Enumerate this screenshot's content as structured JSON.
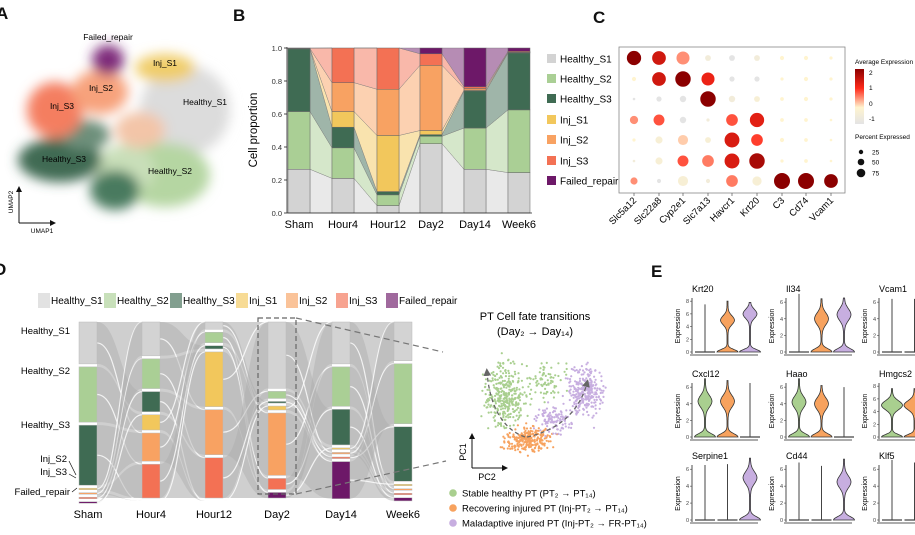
{
  "panel_labels": {
    "a": "A",
    "b": "B",
    "c": "C",
    "d": "D",
    "e": "E"
  },
  "categories": [
    "Healthy_S1",
    "Healthy_S2",
    "Healthy_S3",
    "Inj_S1",
    "Inj_S2",
    "Inj_S3",
    "Failed_repair"
  ],
  "colors": {
    "Healthy_S1": "#d3d3d3",
    "Healthy_S2": "#aacf95",
    "Healthy_S3": "#3f6b53",
    "Inj_S1": "#f2c75c",
    "Inj_S2": "#f8a262",
    "Inj_S3": "#f37154",
    "Failed_repair": "#6d1868"
  },
  "panel_a": {
    "axis_x": "UMAP1",
    "axis_y": "UMAP2",
    "cluster_labels": [
      "Failed_repair",
      "Inj_S1",
      "Inj_S2",
      "Inj_S3",
      "Healthy_S1",
      "Healthy_S3",
      "Healthy_S2"
    ]
  },
  "chart_data": [
    {
      "panel": "B",
      "type": "bar",
      "stacked": true,
      "categories": [
        "Sham",
        "Hour4",
        "Hour12",
        "Day2",
        "Day14",
        "Week6"
      ],
      "series": [
        {
          "name": "Healthy_S1",
          "values": [
            0.265,
            0.21,
            0.045,
            0.42,
            0.265,
            0.245
          ]
        },
        {
          "name": "Healthy_S2",
          "values": [
            0.35,
            0.185,
            0.065,
            0.045,
            0.25,
            0.38
          ]
        },
        {
          "name": "Healthy_S3",
          "values": [
            0.38,
            0.125,
            0.02,
            0.01,
            0.225,
            0.345
          ]
        },
        {
          "name": "Inj_S1",
          "values": [
            0.001,
            0.095,
            0.34,
            0.025,
            0.005,
            0.002
          ]
        },
        {
          "name": "Inj_S2",
          "values": [
            0.001,
            0.175,
            0.28,
            0.395,
            0.01,
            0.003
          ]
        },
        {
          "name": "Inj_S3",
          "values": [
            0.002,
            0.21,
            0.25,
            0.07,
            0.01,
            0.005
          ]
        },
        {
          "name": "Failed_repair",
          "values": [
            0.001,
            0.0,
            0.0,
            0.035,
            0.235,
            0.02
          ]
        }
      ],
      "xlabel": "",
      "ylabel": "Cell proportion",
      "ylim": [
        0,
        1.0
      ],
      "yticks": [
        "0.0",
        "0.2",
        "0.4",
        "0.6",
        "0.8",
        "1.0"
      ],
      "legend": "right"
    },
    {
      "panel": "C",
      "type": "dotplot",
      "genes": [
        "Slc5a12",
        "Slc22a8",
        "Cyp2e1",
        "Slc7a13",
        "Havcr1",
        "Krt20",
        "C3",
        "Cd74",
        "Vcam1"
      ],
      "rows": [
        "Healthy_S1",
        "Healthy_S2",
        "Healthy_S3",
        "Inj_S1",
        "Inj_S2",
        "Inj_S3",
        "Failed_repair"
      ],
      "avg_expression": [
        [
          2.2,
          1.5,
          0.5,
          -0.5,
          -1,
          -0.5,
          0,
          0,
          0
        ],
        [
          0,
          1.5,
          2.2,
          1.2,
          -1,
          -1,
          0,
          0,
          0
        ],
        [
          -1,
          -1,
          -1,
          2.2,
          -0.5,
          -0.3,
          0,
          0,
          0
        ],
        [
          0.5,
          0.8,
          -1,
          -0.5,
          0.8,
          1.3,
          0,
          0,
          0
        ],
        [
          0,
          -0.3,
          0.2,
          -0.3,
          1.4,
          0.9,
          0,
          0,
          0
        ],
        [
          -0.5,
          -0.3,
          0.8,
          0.6,
          1.4,
          1.9,
          0,
          0,
          0
        ],
        [
          0.5,
          -1,
          -0.3,
          -0.5,
          0.6,
          -0.3,
          2.2,
          2.2,
          2.2
        ]
      ],
      "percent_expressed": [
        [
          60,
          55,
          50,
          10,
          10,
          10,
          5,
          5,
          3
        ],
        [
          5,
          55,
          70,
          50,
          8,
          8,
          3,
          5,
          3
        ],
        [
          2,
          8,
          12,
          70,
          12,
          10,
          4,
          5,
          3
        ],
        [
          20,
          35,
          12,
          3,
          40,
          60,
          4,
          4,
          2
        ],
        [
          3,
          15,
          30,
          10,
          65,
          40,
          5,
          4,
          2
        ],
        [
          2,
          15,
          35,
          40,
          65,
          70,
          3,
          4,
          2
        ],
        [
          15,
          5,
          30,
          5,
          40,
          25,
          75,
          75,
          55
        ]
      ],
      "color_legend_title": "Average Expression",
      "color_ticks": [
        "2",
        "1",
        "0",
        "-1"
      ],
      "size_legend_title": "Percent Expressed",
      "size_ticks": [
        "25",
        "50",
        "75"
      ]
    },
    {
      "panel": "D",
      "type": "sankey",
      "timepoints": [
        "Sham",
        "Hour4",
        "Hour12",
        "Day2",
        "Day14",
        "Week6"
      ],
      "node_labels_left": [
        "Healthy_S1",
        "Healthy_S2",
        "Healthy_S3",
        "Inj_S2",
        "Inj_S3",
        "Failed_repair"
      ]
    },
    {
      "panel": "D-inset",
      "type": "scatter",
      "title": "PT Cell fate transitions",
      "subtitle": "(Day₂ → Day₁₄)",
      "xlabel": "PC2",
      "ylabel": "PC1",
      "series": [
        {
          "name": "Stable healthy PT (PT₂ → PT₁₄)",
          "color": "#a9cf8f"
        },
        {
          "name": "Recovering injured PT (Inj-PT₂ → PT₁₄)",
          "color": "#f7a25e"
        },
        {
          "name": "Maladaptive injured PT (Inj-PT₂ → FR-PT₁₄)",
          "color": "#c7aee0"
        }
      ]
    },
    {
      "panel": "E",
      "type": "violin",
      "ylabel": "Expression",
      "group_colors": [
        "#a9cf8f",
        "#f7a25e",
        "#c7aee0"
      ],
      "genes": [
        {
          "gene": "Krt20",
          "ymax": 8,
          "violins": [
            {
              "mode": "none",
              "top": 7.5
            },
            {
              "mode": "bimodal",
              "center": 5,
              "top": 8
            },
            {
              "mode": "bimodal",
              "center": 6,
              "top": 7.8
            }
          ]
        },
        {
          "gene": "Il34",
          "ymax": 6,
          "violins": [
            {
              "mode": "none",
              "top": 7
            },
            {
              "mode": "bimodal",
              "center": 4,
              "top": 6.4
            },
            {
              "mode": "bimodal",
              "center": 4.5,
              "top": 6.5
            }
          ]
        },
        {
          "gene": "Vcam1",
          "ymax": 6,
          "violins": [
            {
              "mode": "none",
              "top": 6.4
            },
            {
              "mode": "none",
              "top": 6.4
            },
            {
              "mode": "bimodal",
              "center": 4.5,
              "top": 6.4
            }
          ]
        },
        {
          "gene": "Cxcl12",
          "ymax": 6,
          "violins": [
            {
              "mode": "bimodal",
              "center": 4.3,
              "top": 7
            },
            {
              "mode": "bimodal",
              "center": 4.3,
              "top": 6.8
            },
            {
              "mode": "none",
              "top": 6.5
            }
          ]
        },
        {
          "gene": "Haao",
          "ymax": 6,
          "violins": [
            {
              "mode": "bimodal",
              "center": 4.2,
              "top": 7
            },
            {
              "mode": "bimodal",
              "center": 4,
              "top": 6.2
            },
            {
              "mode": "none",
              "top": 6
            }
          ]
        },
        {
          "gene": "Hmgcs2",
          "ymax": 8,
          "violins": [
            {
              "mode": "bimodal",
              "center": 5,
              "top": 7.6,
              "wide": true
            },
            {
              "mode": "bimodal",
              "center": 5,
              "top": 7.6,
              "wide": true
            },
            {
              "mode": "none",
              "top": 7
            }
          ]
        },
        {
          "gene": "Serpine1",
          "ymax": 6,
          "violins": [
            {
              "mode": "none",
              "top": 6.5
            },
            {
              "mode": "none",
              "top": 6.6
            },
            {
              "mode": "bimodal",
              "center": 5,
              "top": 7.3
            }
          ]
        },
        {
          "gene": "Cd44",
          "ymax": 6,
          "violins": [
            {
              "mode": "none",
              "top": 6.8
            },
            {
              "mode": "none",
              "top": 6.4
            },
            {
              "mode": "bimodal",
              "center": 4.5,
              "top": 7.2
            }
          ]
        },
        {
          "gene": "Klf5",
          "ymax": 6,
          "violins": [
            {
              "mode": "none",
              "top": 7.1
            },
            {
              "mode": "none",
              "top": 6.8
            },
            {
              "mode": "none",
              "top": 6.8
            }
          ]
        }
      ]
    }
  ]
}
